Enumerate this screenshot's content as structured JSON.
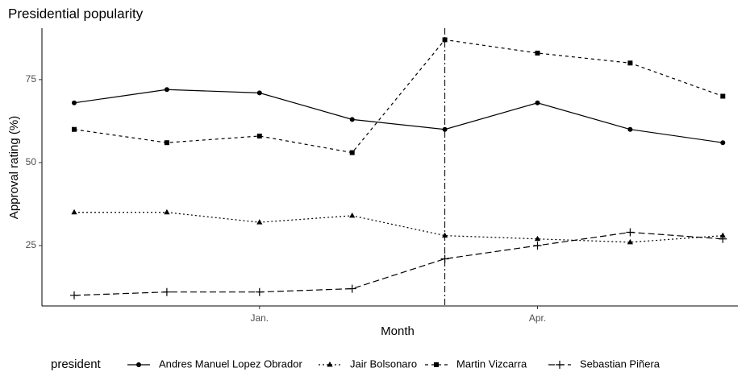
{
  "chart_data": {
    "type": "line",
    "title": "Presidential popularity",
    "x_label": "Month",
    "y_label": "Approval rating  (%)",
    "legend_title": "president",
    "legend": "bottom",
    "grid": false,
    "categories": [
      null,
      null,
      "Jan.",
      null,
      null,
      "Apr.",
      null,
      null
    ],
    "vline_category_index": 4,
    "ylim": [
      6.8,
      90.5
    ],
    "yticks": [
      25,
      50,
      75
    ],
    "series": [
      {
        "name": "Andres Manuel Lopez Obrador",
        "color": "#000000",
        "linestyle": "solid",
        "marker": "circle",
        "values": [
          68,
          72,
          71,
          63,
          60,
          68,
          60,
          56
        ]
      },
      {
        "name": "Jair Bolsonaro",
        "color": "#000000",
        "linestyle": "dotted",
        "marker": "triangle",
        "values": [
          35,
          35,
          32,
          34,
          28,
          27,
          26,
          28
        ]
      },
      {
        "name": "Martin Vizcarra",
        "color": "#000000",
        "linestyle": "dashed",
        "marker": "square",
        "values": [
          60,
          56,
          58,
          53,
          87,
          83,
          80,
          70
        ]
      },
      {
        "name": "Sebastian Piñera",
        "color": "#000000",
        "linestyle": "longdash",
        "marker": "plus",
        "values": [
          10,
          11,
          11,
          12,
          21,
          25,
          29,
          27
        ]
      }
    ]
  }
}
